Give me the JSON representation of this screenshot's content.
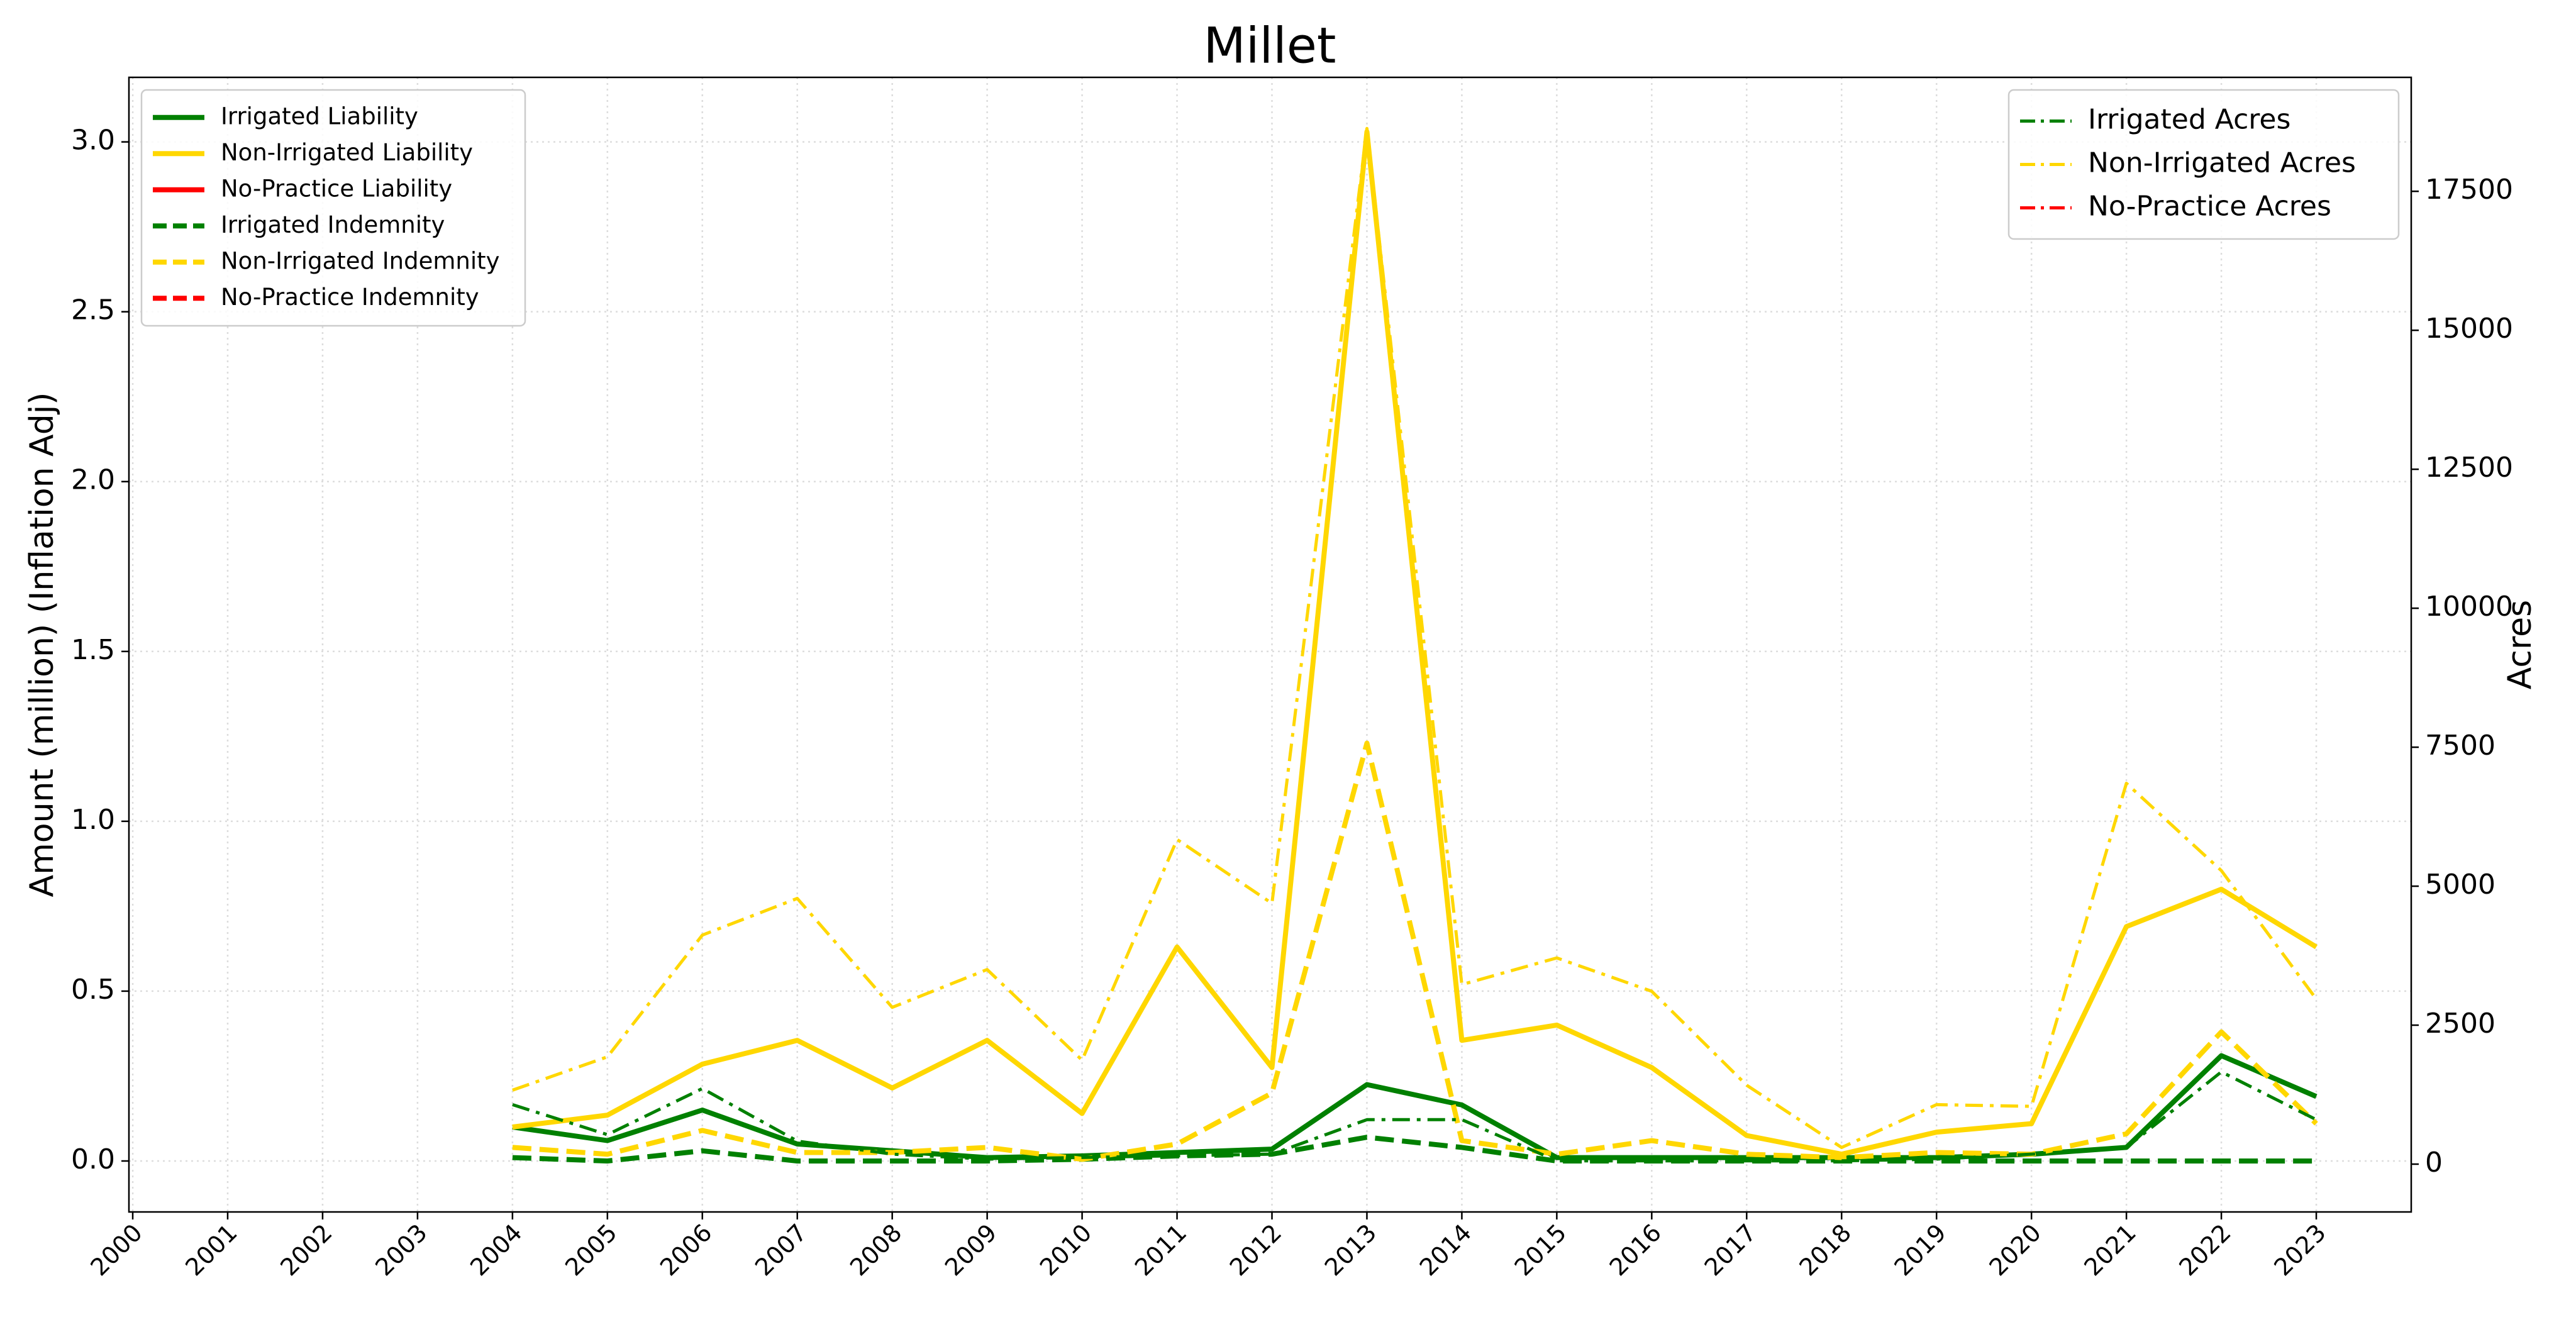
{
  "chart_data": {
    "type": "line",
    "title": "Millet",
    "ylabel": "Amount (million) (Inflation Adj)",
    "y2label": "Acres",
    "x": [
      2004,
      2005,
      2006,
      2007,
      2008,
      2009,
      2010,
      2011,
      2012,
      2013,
      2014,
      2015,
      2016,
      2017,
      2018,
      2019,
      2020,
      2021,
      2022,
      2023
    ],
    "series": [
      {
        "name": "Irrigated Liability",
        "color": "#008000",
        "style": "solid",
        "axis": "y",
        "values": [
          0.1,
          0.06,
          0.15,
          0.05,
          0.03,
          0.01,
          0.015,
          0.025,
          0.035,
          0.225,
          0.165,
          0.01,
          0.01,
          0.01,
          0.01,
          0.01,
          0.02,
          0.04,
          0.31,
          0.19
        ]
      },
      {
        "name": "Non-Irrigated Liability",
        "color": "#ffd700",
        "style": "solid",
        "axis": "y",
        "values": [
          0.1,
          0.135,
          0.285,
          0.355,
          0.215,
          0.355,
          0.14,
          0.63,
          0.275,
          3.03,
          0.355,
          0.4,
          0.275,
          0.075,
          0.02,
          0.085,
          0.11,
          0.69,
          0.8,
          0.63
        ]
      },
      {
        "name": "No-Practice Liability",
        "color": "#ff0000",
        "style": "solid",
        "axis": "y",
        "values": [
          null,
          null,
          null,
          null,
          null,
          null,
          null,
          null,
          null,
          null,
          null,
          null,
          null,
          null,
          null,
          null,
          null,
          null,
          null,
          null
        ]
      },
      {
        "name": "Irrigated Indemnity",
        "color": "#008000",
        "style": "dashed",
        "axis": "y",
        "values": [
          0.01,
          0.0,
          0.03,
          0.0,
          0.0,
          0.0,
          0.005,
          0.015,
          0.02,
          0.07,
          0.04,
          0.0,
          0.0,
          0.0,
          0.0,
          0.0,
          0.0,
          0.0,
          0.0,
          0.0
        ]
      },
      {
        "name": "Non-Irrigated Indemnity",
        "color": "#ffd700",
        "style": "dashed",
        "axis": "y",
        "values": [
          0.04,
          0.02,
          0.09,
          0.025,
          0.025,
          0.04,
          0.005,
          0.05,
          0.2,
          1.23,
          0.06,
          0.02,
          0.06,
          0.02,
          0.01,
          0.025,
          0.02,
          0.08,
          0.38,
          0.11
        ]
      },
      {
        "name": "No-Practice Indemnity",
        "color": "#ff0000",
        "style": "dashed",
        "axis": "y",
        "values": [
          null,
          null,
          null,
          null,
          null,
          null,
          null,
          null,
          null,
          null,
          null,
          null,
          null,
          null,
          null,
          null,
          null,
          null,
          null,
          null
        ]
      },
      {
        "name": "Irrigated Acres",
        "color": "#008000",
        "style": "dashdot",
        "axis": "y2",
        "values": [
          1070,
          530,
          1360,
          415,
          180,
          90,
          120,
          150,
          180,
          800,
          800,
          60,
          60,
          60,
          60,
          90,
          180,
          300,
          1660,
          800
        ]
      },
      {
        "name": "Non-Irrigated Acres",
        "color": "#ffd700",
        "style": "dashdot",
        "axis": "y2",
        "values": [
          1330,
          1930,
          4120,
          4780,
          2820,
          3500,
          1870,
          5840,
          4690,
          18630,
          3230,
          3710,
          3110,
          1420,
          300,
          1070,
          1040,
          6850,
          5280,
          2970
        ]
      },
      {
        "name": "No-Practice Acres",
        "color": "#ff0000",
        "style": "dashdot",
        "axis": "y2",
        "values": [
          null,
          null,
          null,
          null,
          null,
          null,
          null,
          null,
          null,
          null,
          null,
          null,
          null,
          null,
          null,
          null,
          null,
          null,
          null,
          null
        ]
      }
    ],
    "xlim": [
      1999.96,
      2024.0
    ],
    "xticks": [
      2000,
      2001,
      2002,
      2003,
      2004,
      2005,
      2006,
      2007,
      2008,
      2009,
      2010,
      2011,
      2012,
      2013,
      2014,
      2015,
      2016,
      2017,
      2018,
      2019,
      2020,
      2021,
      2022,
      2023
    ],
    "ylim": [
      -0.15,
      3.19
    ],
    "yticks": [
      {
        "value": 0,
        "label": "0.0"
      },
      0.5,
      {
        "value": 1,
        "label": "1.0"
      },
      1.5,
      {
        "value": 2,
        "label": "2.0"
      },
      2.5,
      {
        "value": 3,
        "label": "3.0"
      }
    ],
    "y2lim": [
      -860,
      19550
    ],
    "y2ticks": [
      0,
      2500,
      5000,
      7500,
      10000,
      12500,
      15000,
      17500
    ],
    "grid": true,
    "legend_loc": "upper left",
    "legend2_loc": "upper right"
  }
}
